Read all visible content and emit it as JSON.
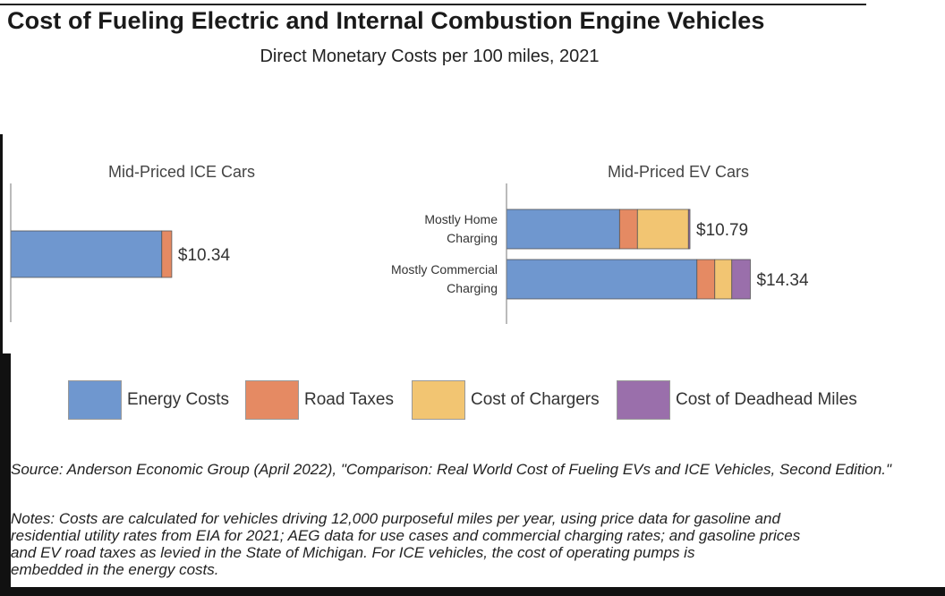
{
  "title": "Cost of Fueling Electric and Internal Combustion Engine Vehicles",
  "subtitle": "Direct Monetary Costs per 100 miles, 2021",
  "colors": {
    "energy": "#6f97cf",
    "road_taxes": "#e58a63",
    "chargers": "#f2c572",
    "deadhead": "#9a6fab"
  },
  "chart_data": [
    {
      "type": "bar",
      "orientation": "horizontal",
      "stacked": true,
      "title": "Mid-Priced ICE Cars",
      "categories": [
        ""
      ],
      "series": [
        {
          "name": "Energy Costs",
          "values": [
            9.7
          ]
        },
        {
          "name": "Road Taxes",
          "values": [
            0.64
          ]
        },
        {
          "name": "Cost of Chargers",
          "values": [
            0
          ]
        },
        {
          "name": "Cost of Deadhead Miles",
          "values": [
            0
          ]
        }
      ],
      "totals": [
        "$10.34"
      ],
      "xlim": [
        0,
        16
      ]
    },
    {
      "type": "bar",
      "orientation": "horizontal",
      "stacked": true,
      "title": "Mid-Priced EV Cars",
      "categories": [
        "Mostly Home Charging",
        "Mostly Commercial Charging"
      ],
      "category_lines": [
        [
          "Mostly Home",
          "Charging"
        ],
        [
          "Mostly Commercial",
          "Charging"
        ]
      ],
      "series": [
        {
          "name": "Energy Costs",
          "values": [
            6.65,
            11.2
          ]
        },
        {
          "name": "Road Taxes",
          "values": [
            1.05,
            1.05
          ]
        },
        {
          "name": "Cost of Chargers",
          "values": [
            3.0,
            1.0
          ]
        },
        {
          "name": "Cost of Deadhead Miles",
          "values": [
            0.09,
            1.09
          ]
        }
      ],
      "totals": [
        "$10.79",
        "$14.34"
      ],
      "xlim": [
        0,
        16
      ]
    }
  ],
  "legend": [
    {
      "label": "Energy Costs",
      "color": "#6f97cf"
    },
    {
      "label": "Road Taxes",
      "color": "#e58a63"
    },
    {
      "label": "Cost of Chargers",
      "color": "#f2c572"
    },
    {
      "label": "Cost of Deadhead Miles",
      "color": "#9a6fab"
    }
  ],
  "source": "Source: Anderson Economic Group (April 2022), \"Comparison: Real World Cost of Fueling EVs and ICE Vehicles, Second Edition.\"",
  "notes_lines": [
    "Notes: Costs are calculated for vehicles driving 12,000 purposeful miles per year, using price data for gasoline and",
    "residential utility rates from EIA for 2021; AEG data for use cases and commercial charging rates; and gasoline prices",
    "and EV road taxes as levied in the State of Michigan. For ICE vehicles, the cost of operating pumps is",
    "embedded in the energy costs."
  ]
}
